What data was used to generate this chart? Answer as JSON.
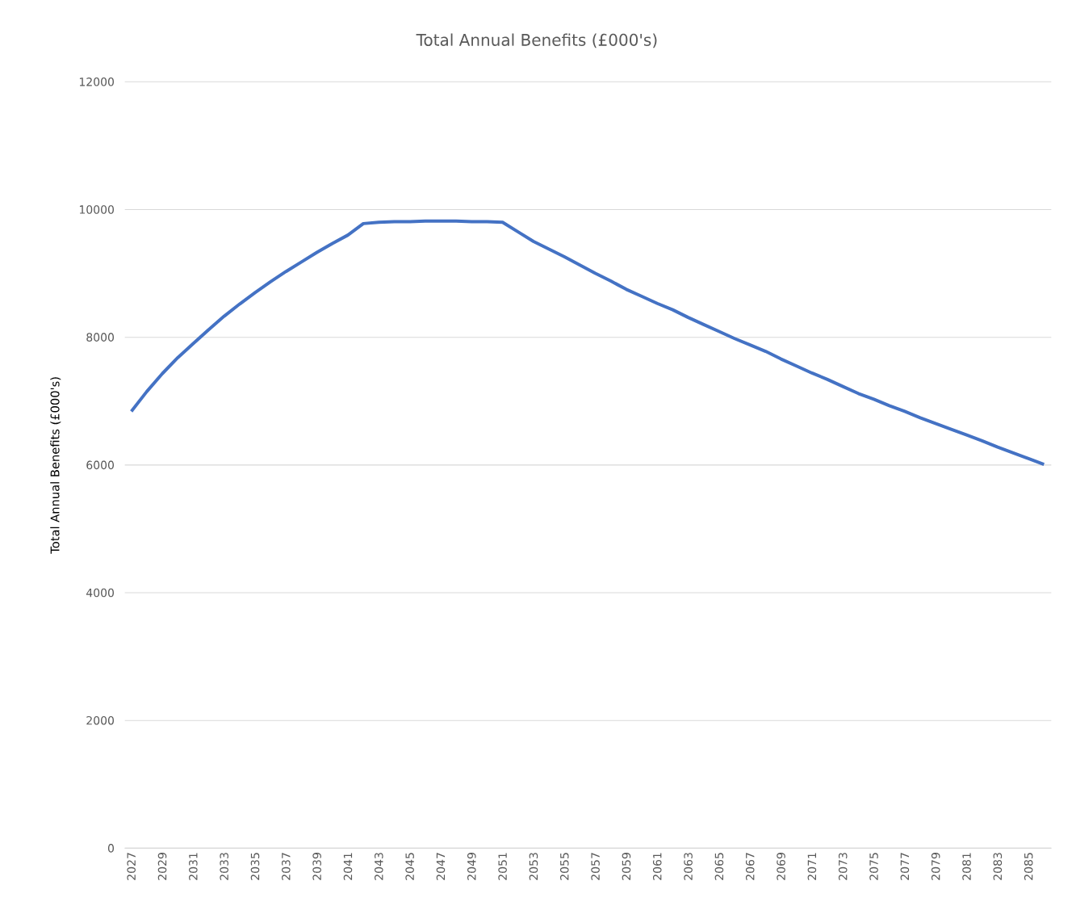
{
  "chart_data": {
    "type": "line",
    "title": "Total Annual Benefits (£000's)",
    "ylabel": "Total Annual Benefits (£000's)",
    "categories": [
      "2027",
      null,
      "2029",
      null,
      "2031",
      null,
      "2033",
      null,
      "2035",
      null,
      "2037",
      null,
      "2039",
      null,
      "2041",
      null,
      "2043",
      null,
      "2045",
      null,
      "2047",
      null,
      "2049",
      null,
      "2051",
      null,
      "2053",
      null,
      "2055",
      null,
      "2057",
      null,
      "2059",
      null,
      "2061",
      null,
      "2063",
      null,
      "2065",
      null,
      "2067",
      null,
      "2069",
      null,
      "2071",
      null,
      "2073",
      null,
      "2075",
      null,
      "2077",
      null,
      "2079",
      null,
      "2081",
      null,
      "2083",
      null,
      "2085",
      null
    ],
    "values": [
      6840,
      7150,
      7430,
      7680,
      7900,
      8120,
      8330,
      8520,
      8700,
      8870,
      9030,
      9180,
      9330,
      9470,
      9600,
      9780,
      9800,
      9810,
      9810,
      9820,
      9820,
      9820,
      9810,
      9810,
      9800,
      9650,
      9500,
      9380,
      9260,
      9130,
      9000,
      8880,
      8750,
      8640,
      8530,
      8430,
      8310,
      8200,
      8090,
      7980,
      7880,
      7780,
      7660,
      7550,
      7440,
      7340,
      7230,
      7120,
      7030,
      6930,
      6840,
      6740,
      6650,
      6560,
      6470,
      6380,
      6280,
      6190,
      6100,
      6010
    ],
    "color": "#4472c4",
    "ylim": [
      0,
      12000
    ],
    "yticks": [
      0,
      2000,
      4000,
      6000,
      8000,
      10000,
      12000
    ],
    "grid": "y"
  }
}
